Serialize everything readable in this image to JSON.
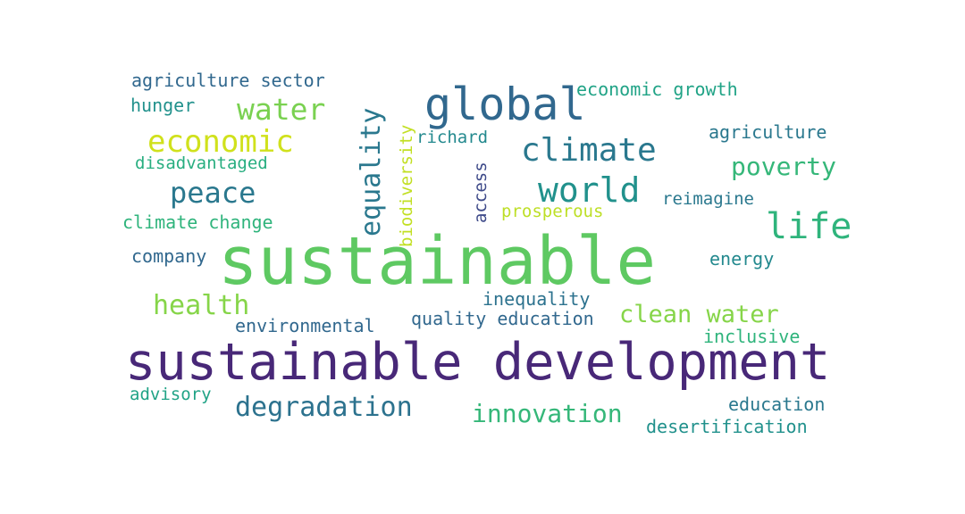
{
  "words": [
    {
      "text": "sustainable development",
      "color": "#482878"
    },
    {
      "text": "sustainable",
      "color": "#5ec962"
    },
    {
      "text": "global",
      "color": "#31688e"
    },
    {
      "text": "world",
      "color": "#21918c"
    },
    {
      "text": "climate",
      "color": "#2a788e"
    },
    {
      "text": "life",
      "color": "#2fb47c"
    },
    {
      "text": "economic",
      "color": "#d0e11c"
    },
    {
      "text": "water",
      "color": "#7ad151"
    },
    {
      "text": "peace",
      "color": "#2a788e"
    },
    {
      "text": "equality",
      "color": "#2a788e"
    },
    {
      "text": "poverty",
      "color": "#35b779"
    },
    {
      "text": "health",
      "color": "#86d549"
    },
    {
      "text": "clean water",
      "color": "#86d549"
    },
    {
      "text": "degradation",
      "color": "#2c728e"
    },
    {
      "text": "innovation",
      "color": "#35b779"
    },
    {
      "text": "agriculture sector",
      "color": "#31688e"
    },
    {
      "text": "economic growth",
      "color": "#20a386"
    },
    {
      "text": "hunger",
      "color": "#21918c"
    },
    {
      "text": "agriculture",
      "color": "#2a788e"
    },
    {
      "text": "biodiversity",
      "color": "#c2df23"
    },
    {
      "text": "richard",
      "color": "#23898e"
    },
    {
      "text": "disadvantaged",
      "color": "#28ae80"
    },
    {
      "text": "access",
      "color": "#3e4a89"
    },
    {
      "text": "reimagine",
      "color": "#2a788e"
    },
    {
      "text": "prosperous",
      "color": "#bddf26"
    },
    {
      "text": "climate change",
      "color": "#2fb47c"
    },
    {
      "text": "company",
      "color": "#31688e"
    },
    {
      "text": "energy",
      "color": "#23898e"
    },
    {
      "text": "inequality",
      "color": "#2c728e"
    },
    {
      "text": "environmental",
      "color": "#31688e"
    },
    {
      "text": "quality education",
      "color": "#31688e"
    },
    {
      "text": "inclusive",
      "color": "#2fb47c"
    },
    {
      "text": "advisory",
      "color": "#20a386"
    },
    {
      "text": "education",
      "color": "#2a788e"
    },
    {
      "text": "desertification",
      "color": "#21918c"
    }
  ]
}
